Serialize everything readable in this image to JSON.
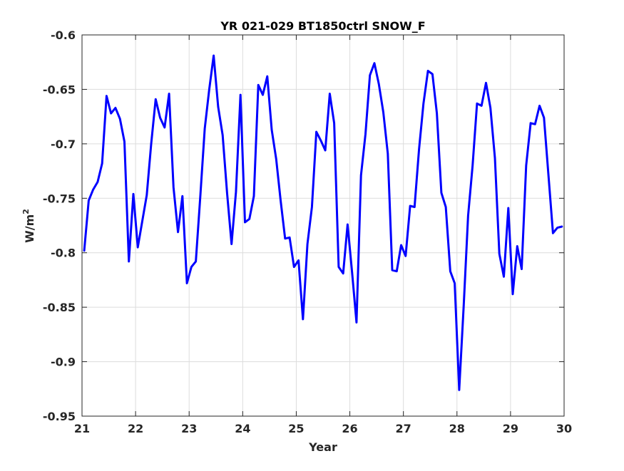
{
  "chart_data": {
    "type": "line",
    "title": "YR 021-029 BT1850ctrl SNOW_F",
    "xlabel": "Year",
    "ylabel": "W/m",
    "ylabel_superscript": "2",
    "xlim": [
      21,
      30
    ],
    "ylim": [
      -0.95,
      -0.6
    ],
    "xticks": [
      21,
      22,
      23,
      24,
      25,
      26,
      27,
      28,
      29,
      30
    ],
    "xtick_labels": [
      "21",
      "22",
      "23",
      "24",
      "25",
      "26",
      "27",
      "28",
      "29",
      "30"
    ],
    "yticks": [
      -0.6,
      -0.65,
      -0.7,
      -0.75,
      -0.8,
      -0.85,
      -0.9,
      -0.95
    ],
    "ytick_labels": [
      "-0.6",
      "-0.65",
      "-0.7",
      "-0.75",
      "-0.8",
      "-0.85",
      "-0.9",
      "-0.95"
    ],
    "grid": true,
    "legend": false,
    "colors": {
      "line": "#0000ff",
      "grid": "#dcdcdc",
      "axis": "#262626",
      "background": "#ffffff"
    },
    "series": [
      {
        "x": [
          21.0417,
          21.125,
          21.2083,
          21.2917,
          21.375,
          21.4583,
          21.5417,
          21.625,
          21.7083,
          21.7917,
          21.875,
          21.9583,
          22.0417,
          22.125,
          22.2083,
          22.2917,
          22.375,
          22.4583,
          22.5417,
          22.625,
          22.7083,
          22.7917,
          22.875,
          22.9583,
          23.0417,
          23.125,
          23.2083,
          23.2917,
          23.375,
          23.4583,
          23.5417,
          23.625,
          23.7083,
          23.7917,
          23.875,
          23.9583,
          24.0417,
          24.125,
          24.2083,
          24.2917,
          24.375,
          24.4583,
          24.5417,
          24.625,
          24.7083,
          24.7917,
          24.875,
          24.9583,
          25.0417,
          25.125,
          25.2083,
          25.2917,
          25.375,
          25.4583,
          25.5417,
          25.625,
          25.7083,
          25.7917,
          25.875,
          25.9583,
          26.0417,
          26.125,
          26.2083,
          26.2917,
          26.375,
          26.4583,
          26.5417,
          26.625,
          26.7083,
          26.7917,
          26.875,
          26.9583,
          27.0417,
          27.125,
          27.2083,
          27.2917,
          27.375,
          27.4583,
          27.5417,
          27.625,
          27.7083,
          27.7917,
          27.875,
          27.9583,
          28.0417,
          28.125,
          28.2083,
          28.2917,
          28.375,
          28.4583,
          28.5417,
          28.625,
          28.7083,
          28.7917,
          28.875,
          28.9583,
          29.0417,
          29.125,
          29.2083,
          29.2917,
          29.375,
          29.4583,
          29.5417,
          29.625,
          29.7083,
          29.7917,
          29.875,
          29.9583
        ],
        "y": [
          -0.798,
          -0.752,
          -0.742,
          -0.735,
          -0.718,
          -0.656,
          -0.672,
          -0.667,
          -0.677,
          -0.698,
          -0.808,
          -0.746,
          -0.795,
          -0.771,
          -0.747,
          -0.7,
          -0.659,
          -0.676,
          -0.685,
          -0.654,
          -0.74,
          -0.781,
          -0.748,
          -0.828,
          -0.813,
          -0.808,
          -0.748,
          -0.686,
          -0.65,
          -0.619,
          -0.666,
          -0.692,
          -0.745,
          -0.792,
          -0.744,
          -0.655,
          -0.772,
          -0.769,
          -0.748,
          -0.646,
          -0.655,
          -0.638,
          -0.687,
          -0.714,
          -0.752,
          -0.787,
          -0.786,
          -0.813,
          -0.807,
          -0.861,
          -0.792,
          -0.758,
          -0.689,
          -0.697,
          -0.706,
          -0.654,
          -0.681,
          -0.813,
          -0.819,
          -0.774,
          -0.818,
          -0.864,
          -0.729,
          -0.691,
          -0.637,
          -0.626,
          -0.645,
          -0.671,
          -0.709,
          -0.816,
          -0.817,
          -0.793,
          -0.803,
          -0.757,
          -0.758,
          -0.705,
          -0.663,
          -0.633,
          -0.636,
          -0.672,
          -0.745,
          -0.758,
          -0.817,
          -0.828,
          -0.926,
          -0.849,
          -0.766,
          -0.72,
          -0.663,
          -0.665,
          -0.644,
          -0.667,
          -0.713,
          -0.801,
          -0.822,
          -0.759,
          -0.838,
          -0.794,
          -0.815,
          -0.72,
          -0.681,
          -0.682,
          -0.665,
          -0.676,
          -0.729,
          -0.782,
          -0.777,
          -0.776
        ]
      }
    ]
  }
}
